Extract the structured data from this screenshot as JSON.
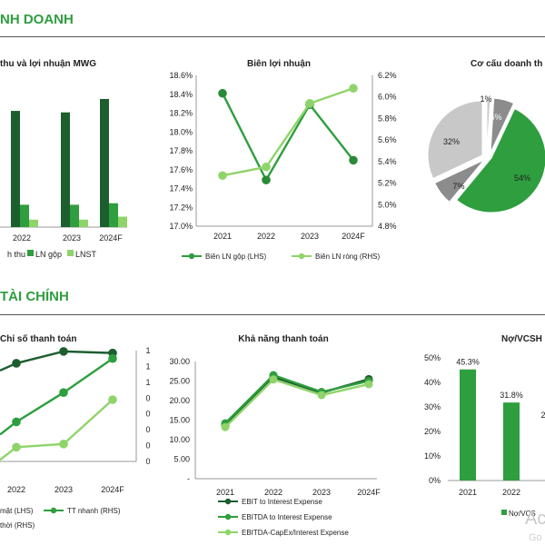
{
  "sections": {
    "business": "NH DOANH",
    "finance": "TÀI CHÍNH"
  },
  "colors": {
    "dark_green": "#1d5e2e",
    "mid_green": "#2e9e3e",
    "light_green": "#8fd46a",
    "gray": "#8c8c8c",
    "light_gray": "#c8c8c8"
  },
  "watermark": {
    "main": "Ac",
    "sub": "Go"
  },
  "charts": [
    {
      "id": "revenue-profit",
      "type": "bar",
      "title": "thu và lợi nhuận MWG",
      "categories": [
        "2022",
        "2023",
        "2024F"
      ],
      "series": [
        {
          "name": "h thu",
          "values": [
            78,
            77,
            86
          ]
        },
        {
          "name": "LN gộp",
          "values": [
            15,
            15,
            16
          ]
        },
        {
          "name": "LNST",
          "values": [
            5,
            5,
            7
          ]
        }
      ],
      "ylim": [
        0,
        100
      ]
    },
    {
      "id": "profit-margin",
      "type": "line",
      "title": "Biên lợi nhuận",
      "categories": [
        "2021",
        "2022",
        "2023",
        "2024F"
      ],
      "left_ticks": [
        "17.0%",
        "17.2%",
        "17.4%",
        "17.6%",
        "17.8%",
        "18.0%",
        "18.2%",
        "18.4%",
        "18.6%"
      ],
      "right_ticks": [
        "4.8%",
        "5.0%",
        "5.2%",
        "5.4%",
        "5.6%",
        "5.8%",
        "6.0%",
        "6.2%"
      ],
      "ylim_left": [
        17.0,
        18.6
      ],
      "ylim_right": [
        4.8,
        6.2
      ],
      "series": [
        {
          "name": "Biên LN gộp (LHS)",
          "axis": "left",
          "values": [
            18.41,
            17.49,
            18.29,
            17.7
          ]
        },
        {
          "name": "Biên LN ròng (RHS)",
          "axis": "right",
          "values": [
            5.27,
            5.35,
            5.94,
            6.08
          ]
        }
      ]
    },
    {
      "id": "revenue-structure",
      "type": "pie",
      "title": "Cơ cấu doanh th",
      "slices": [
        {
          "label": "1%",
          "value": 1
        },
        {
          "label": "6%",
          "value": 6
        },
        {
          "label": "54%",
          "value": 54
        },
        {
          "label": "7%",
          "value": 7
        },
        {
          "label": "32%",
          "value": 32
        }
      ]
    },
    {
      "id": "liquidity-ratios",
      "type": "line",
      "title": "Chỉ số thanh toán",
      "categories": [
        "2022",
        "2023",
        "2024F"
      ],
      "right_ticks": [
        "0",
        "0",
        "0",
        "0",
        "0",
        "1",
        "1",
        "1"
      ],
      "ylim_left": [
        0,
        14
      ],
      "ylim_right": [
        0,
        14
      ],
      "series": [
        {
          "name": "mặt (LHS)",
          "values": [
            12.4,
            13.9,
            13.7
          ]
        },
        {
          "name": "TT nhanh (RHS)",
          "values": [
            5.0,
            8.7,
            13.0
          ]
        },
        {
          "name": "thời (RHS)",
          "values": [
            1.8,
            2.2,
            7.8
          ]
        }
      ]
    },
    {
      "id": "solvency",
      "type": "line",
      "title": "Khả năng thanh toán",
      "categories": [
        "2021",
        "2022",
        "2023",
        "2024F"
      ],
      "y_ticks": [
        "-",
        "5.00",
        "10.00",
        "15.00",
        "20.00",
        "25.00",
        "30.00"
      ],
      "ylim": [
        0,
        30
      ],
      "series": [
        {
          "name": "EBIT to Interest Expense",
          "values": [
            13.7,
            26.0,
            22.0,
            25.5
          ]
        },
        {
          "name": "EBITDA to Interest Expense",
          "values": [
            14.2,
            26.5,
            22.2,
            25.0
          ]
        },
        {
          "name": "EBITDA-CapEx/Interest Expense",
          "values": [
            13.2,
            25.4,
            21.4,
            24.2
          ]
        }
      ]
    },
    {
      "id": "debt-equity",
      "type": "bar",
      "title": "Nợ/VCSH",
      "categories": [
        "2021",
        "2022"
      ],
      "series": [
        {
          "name": "Nợ/VCS",
          "values": [
            45.3,
            31.8
          ]
        }
      ],
      "data_labels": [
        "45.3%",
        "31.8%"
      ],
      "y_ticks": [
        "0%",
        "10%",
        "20%",
        "30%",
        "40%",
        "50%"
      ],
      "ylim": [
        0,
        50
      ],
      "extra_label": "2"
    }
  ]
}
